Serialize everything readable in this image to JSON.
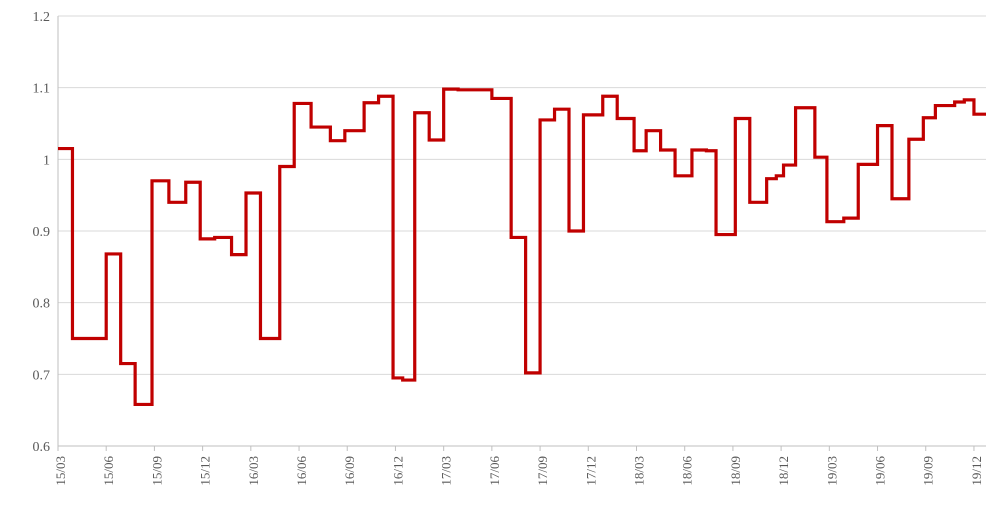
{
  "chart_data": {
    "type": "line",
    "step": true,
    "title": "",
    "xlabel": "",
    "ylabel": "",
    "ylim": [
      0.6,
      1.2
    ],
    "yticks": [
      0.6,
      0.7,
      0.8,
      0.9,
      1,
      1.1,
      1.2
    ],
    "ytick_labels": [
      "0.6",
      "0.7",
      "0.8",
      "0.9",
      "1",
      "1.1",
      "1.2"
    ],
    "xtick_labels": [
      "15/03",
      "15/06",
      "15/09",
      "15/12",
      "16/03",
      "16/06",
      "16/09",
      "16/12",
      "17/03",
      "17/06",
      "17/09",
      "17/12",
      "18/03",
      "18/06",
      "18/09",
      "18/12",
      "19/03",
      "19/06",
      "19/09",
      "19/12"
    ],
    "grid": true,
    "legend": "none",
    "line_color": "#C00000",
    "series": [
      {
        "points": [
          [
            0.0,
            1.015
          ],
          [
            0.3,
            0.75
          ],
          [
            1.0,
            0.868
          ],
          [
            1.3,
            0.715
          ],
          [
            1.6,
            0.658
          ],
          [
            1.95,
            0.97
          ],
          [
            2.3,
            0.94
          ],
          [
            2.65,
            0.968
          ],
          [
            2.95,
            0.889
          ],
          [
            3.25,
            0.891
          ],
          [
            3.6,
            0.867
          ],
          [
            3.9,
            0.953
          ],
          [
            4.2,
            0.75
          ],
          [
            4.6,
            0.99
          ],
          [
            4.9,
            1.078
          ],
          [
            5.25,
            1.045
          ],
          [
            5.65,
            1.026
          ],
          [
            5.95,
            1.04
          ],
          [
            6.35,
            1.079
          ],
          [
            6.65,
            1.088
          ],
          [
            6.95,
            0.695
          ],
          [
            7.15,
            0.692
          ],
          [
            7.4,
            1.065
          ],
          [
            7.7,
            1.027
          ],
          [
            8.0,
            1.098
          ],
          [
            8.3,
            1.097
          ],
          [
            9.0,
            1.085
          ],
          [
            9.4,
            0.891
          ],
          [
            9.7,
            0.702
          ],
          [
            10.0,
            1.055
          ],
          [
            10.3,
            1.07
          ],
          [
            10.6,
            0.9
          ],
          [
            10.9,
            1.062
          ],
          [
            11.3,
            1.088
          ],
          [
            11.6,
            1.057
          ],
          [
            11.95,
            1.012
          ],
          [
            12.2,
            1.04
          ],
          [
            12.5,
            1.013
          ],
          [
            12.8,
            0.977
          ],
          [
            13.15,
            1.013
          ],
          [
            13.45,
            1.012
          ],
          [
            13.65,
            0.895
          ],
          [
            14.05,
            1.057
          ],
          [
            14.35,
            0.94
          ],
          [
            14.7,
            0.973
          ],
          [
            14.9,
            0.977
          ],
          [
            15.05,
            0.992
          ],
          [
            15.3,
            1.072
          ],
          [
            15.7,
            1.003
          ],
          [
            15.95,
            0.913
          ],
          [
            16.3,
            0.918
          ],
          [
            16.6,
            0.993
          ],
          [
            17.0,
            1.047
          ],
          [
            17.3,
            0.945
          ],
          [
            17.65,
            1.028
          ],
          [
            17.95,
            1.058
          ],
          [
            18.2,
            1.075
          ],
          [
            18.6,
            1.08
          ],
          [
            18.8,
            1.083
          ],
          [
            19.0,
            1.063
          ],
          [
            19.25,
            1.063
          ]
        ]
      }
    ]
  }
}
